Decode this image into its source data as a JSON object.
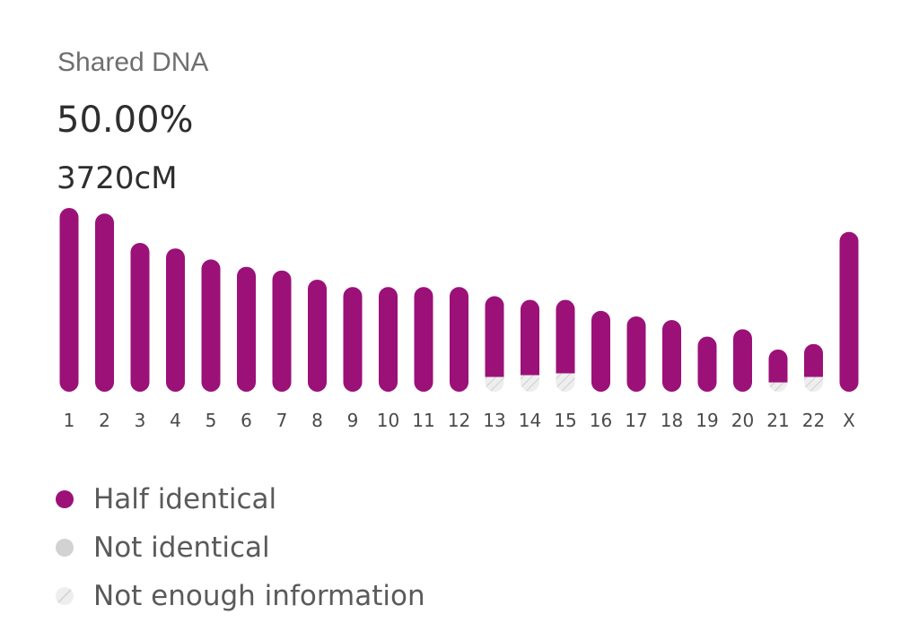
{
  "header": {
    "label": "Shared DNA",
    "percent": "50.00%",
    "cm": "3720cM"
  },
  "colors": {
    "half": "#9b1178",
    "not_identical": "#d2d2d2",
    "not_enough": "#eeeeee"
  },
  "legend": [
    {
      "key": "half",
      "label": "Half identical"
    },
    {
      "key": "not_identical",
      "label": "Not identical"
    },
    {
      "key": "not_enough",
      "label": "Not enough information"
    }
  ],
  "chart_data": {
    "type": "bar",
    "categories": [
      "1",
      "2",
      "3",
      "4",
      "5",
      "6",
      "7",
      "8",
      "9",
      "10",
      "11",
      "12",
      "13",
      "14",
      "15",
      "16",
      "17",
      "18",
      "19",
      "20",
      "21",
      "22",
      "X"
    ],
    "series": [
      {
        "name": "Half identical",
        "values": [
          100,
          97,
          81,
          78,
          72,
          68,
          66,
          61,
          57,
          57,
          57,
          57,
          44,
          41,
          40,
          44,
          41,
          39,
          30,
          34,
          18,
          18,
          87
        ]
      },
      {
        "name": "Not enough information",
        "values": [
          0,
          0,
          0,
          0,
          0,
          0,
          0,
          0,
          0,
          0,
          0,
          0,
          8,
          9,
          10,
          0,
          0,
          0,
          0,
          0,
          5,
          8,
          0
        ]
      }
    ],
    "ylim": [
      0,
      100
    ],
    "grid": false,
    "legend_position": "bottom-left"
  }
}
